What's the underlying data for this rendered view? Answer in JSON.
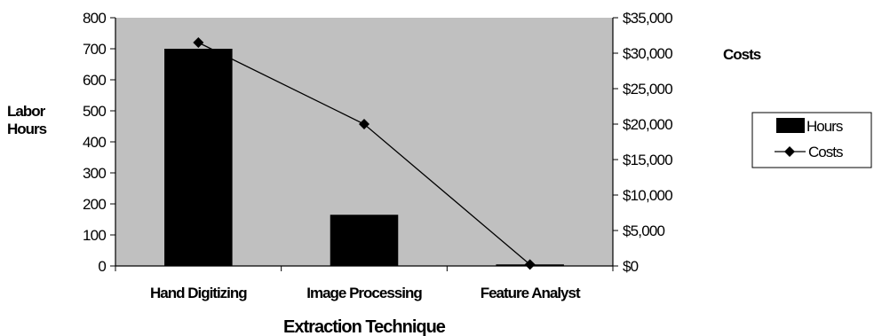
{
  "chart_data": {
    "type": "bar",
    "categories": [
      "Hand Digitizing",
      "Image Processing",
      "Feature Analyst"
    ],
    "series": [
      {
        "name": "Hours",
        "type": "bar",
        "axis": "left",
        "values": [
          700,
          165,
          5
        ],
        "color": "#000000"
      },
      {
        "name": "Costs",
        "type": "line",
        "axis": "right",
        "marker": "diamond",
        "values": [
          31500,
          20000,
          200
        ],
        "color": "#000000"
      }
    ],
    "xlabel": "Extraction Technique",
    "ylabel": [
      "Labor",
      "Hours"
    ],
    "y2label": "Costs",
    "ylim": [
      0,
      800
    ],
    "yticks": [
      "0",
      "100",
      "200",
      "300",
      "400",
      "500",
      "600",
      "700",
      "800"
    ],
    "y2lim": [
      0,
      35000
    ],
    "y2ticks": [
      "$0",
      "$5,000",
      "$10,000",
      "$15,000",
      "$20,000",
      "$25,000",
      "$30,000",
      "$35,000"
    ],
    "plot_background": "#c0c0c0",
    "grid": false,
    "legend": {
      "position": "right",
      "entries": [
        "Hours",
        "Costs"
      ]
    }
  }
}
